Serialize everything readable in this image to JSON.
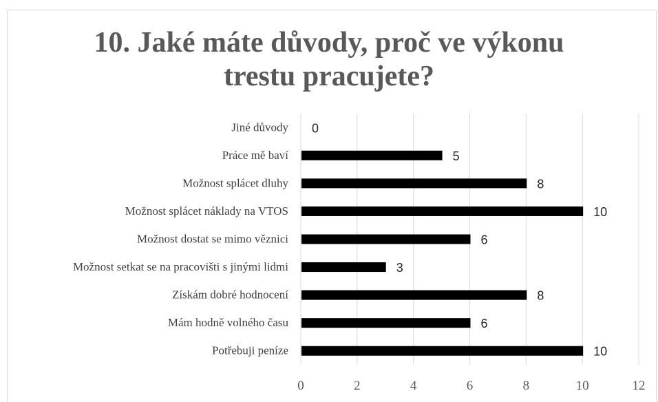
{
  "chart_data": {
    "type": "bar",
    "orientation": "horizontal",
    "title_lines": [
      "10. Jaké máte důvody, proč ve výkonu",
      "trestu pracujete?"
    ],
    "categories": [
      "Jiné důvody",
      "Práce mě baví",
      "Možnost splácet dluhy",
      "Možnost splácet náklady na VTOS",
      "Možnost dostat se mimo věznici",
      "Možnost setkat se na pracovišti s jinými lidmi",
      "Získám dobré hodnocení",
      "Mám hodně volného času",
      "Potřebuji peníze"
    ],
    "values": [
      0,
      5,
      8,
      10,
      6,
      3,
      8,
      6,
      10
    ],
    "xlim": [
      0,
      12
    ],
    "xticks": [
      0,
      2,
      4,
      6,
      8,
      10,
      12
    ],
    "grid": true,
    "data_labels": true,
    "legend": "none",
    "colors": {
      "bar": "#000000",
      "grid": "#d9d9d9",
      "axis_text": "#595959",
      "title": "#595959"
    }
  }
}
